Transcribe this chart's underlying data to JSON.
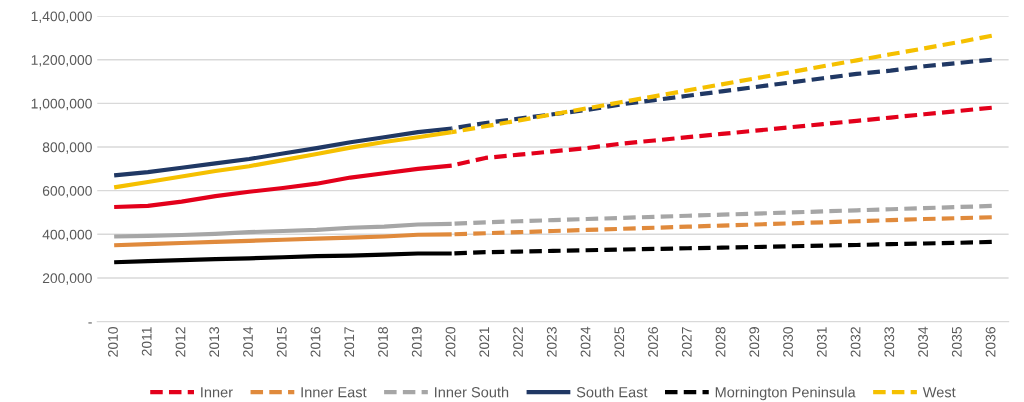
{
  "chart_data": {
    "type": "line",
    "categories": [
      "2010",
      "2011",
      "2012",
      "2013",
      "2014",
      "2015",
      "2016",
      "2017",
      "2018",
      "2019",
      "2020",
      "2021",
      "2022",
      "2023",
      "2024",
      "2025",
      "2026",
      "2027",
      "2028",
      "2029",
      "2030",
      "2031",
      "2032",
      "2033",
      "2034",
      "2035",
      "2036"
    ],
    "ylim": [
      0,
      1400000
    ],
    "yticks": [
      {
        "value": 0,
        "label": "-"
      },
      {
        "value": 200000,
        "label": "200,000"
      },
      {
        "value": 400000,
        "label": "400,000"
      },
      {
        "value": 600000,
        "label": "600,000"
      },
      {
        "value": 800000,
        "label": "800,000"
      },
      {
        "value": 1000000,
        "label": "1,000,000"
      },
      {
        "value": 1200000,
        "label": "1,200,000"
      },
      {
        "value": 1400000,
        "label": "1,400,000"
      }
    ],
    "grid": "y",
    "legend": "bottom",
    "marker": "none",
    "series": [
      {
        "color": "#e3001b",
        "line_style": "solid",
        "values": [
          525000,
          530000,
          550000,
          575000,
          595000,
          612000,
          632000,
          660000,
          680000,
          700000,
          715000,
          null,
          null,
          null,
          null,
          null,
          null,
          null,
          null,
          null,
          null,
          null,
          null,
          null,
          null,
          null,
          null
        ]
      },
      {
        "name": "Inner",
        "color": "#e3001b",
        "line_style": "dashed",
        "values": [
          null,
          null,
          null,
          null,
          null,
          null,
          null,
          null,
          null,
          null,
          715000,
          750000,
          765000,
          780000,
          795000,
          815000,
          830000,
          845000,
          860000,
          875000,
          890000,
          905000,
          920000,
          935000,
          950000,
          965000,
          980000
        ]
      },
      {
        "color": "#e08a3c",
        "line_style": "solid",
        "values": [
          350000,
          355000,
          360000,
          365000,
          370000,
          375000,
          380000,
          385000,
          390000,
          398000,
          400000,
          null,
          null,
          null,
          null,
          null,
          null,
          null,
          null,
          null,
          null,
          null,
          null,
          null,
          null,
          null,
          null
        ]
      },
      {
        "name": "Inner East",
        "color": "#e08a3c",
        "line_style": "dashed",
        "values": [
          null,
          null,
          null,
          null,
          null,
          null,
          null,
          null,
          null,
          null,
          400000,
          405000,
          410000,
          415000,
          420000,
          425000,
          430000,
          435000,
          440000,
          445000,
          450000,
          455000,
          460000,
          465000,
          470000,
          474000,
          478000
        ]
      },
      {
        "color": "#a6a6a6",
        "line_style": "solid",
        "values": [
          390000,
          393000,
          397000,
          402000,
          410000,
          415000,
          420000,
          430000,
          435000,
          445000,
          448000,
          null,
          null,
          null,
          null,
          null,
          null,
          null,
          null,
          null,
          null,
          null,
          null,
          null,
          null,
          null,
          null
        ]
      },
      {
        "name": "Inner South",
        "color": "#a6a6a6",
        "line_style": "dashed",
        "values": [
          null,
          null,
          null,
          null,
          null,
          null,
          null,
          null,
          null,
          null,
          448000,
          455000,
          460000,
          465000,
          470000,
          475000,
          480000,
          485000,
          490000,
          495000,
          500000,
          505000,
          510000,
          515000,
          520000,
          525000,
          530000
        ]
      },
      {
        "name": "South East",
        "color": "#203864",
        "line_style": "solid",
        "values": [
          670000,
          685000,
          705000,
          725000,
          745000,
          770000,
          795000,
          822000,
          845000,
          868000,
          885000,
          null,
          null,
          null,
          null,
          null,
          null,
          null,
          null,
          null,
          null,
          null,
          null,
          null,
          null,
          null,
          null
        ]
      },
      {
        "color": "#203864",
        "line_style": "dashed",
        "values": [
          null,
          null,
          null,
          null,
          null,
          null,
          null,
          null,
          null,
          null,
          885000,
          910000,
          930000,
          950000,
          970000,
          995000,
          1015000,
          1035000,
          1055000,
          1075000,
          1095000,
          1115000,
          1135000,
          1150000,
          1170000,
          1185000,
          1200000
        ]
      },
      {
        "color": "#000000",
        "line_style": "solid",
        "values": [
          272000,
          277000,
          282000,
          286000,
          290000,
          295000,
          300000,
          302000,
          307000,
          312000,
          312000,
          null,
          null,
          null,
          null,
          null,
          null,
          null,
          null,
          null,
          null,
          null,
          null,
          null,
          null,
          null,
          null
        ]
      },
      {
        "name": "Mornington Peninsula",
        "color": "#000000",
        "line_style": "dashed",
        "values": [
          null,
          null,
          null,
          null,
          null,
          null,
          null,
          null,
          null,
          null,
          312000,
          318000,
          321000,
          324000,
          327000,
          330000,
          333000,
          336000,
          339000,
          342000,
          345000,
          348000,
          351000,
          355000,
          358000,
          361000,
          365000
        ]
      },
      {
        "color": "#f5c000",
        "line_style": "solid",
        "values": [
          615000,
          640000,
          665000,
          690000,
          712000,
          740000,
          768000,
          797000,
          823000,
          845000,
          868000,
          null,
          null,
          null,
          null,
          null,
          null,
          null,
          null,
          null,
          null,
          null,
          null,
          null,
          null,
          null,
          null
        ]
      },
      {
        "name": "West",
        "color": "#f5c000",
        "line_style": "dashed",
        "values": [
          null,
          null,
          null,
          null,
          null,
          null,
          null,
          null,
          null,
          null,
          868000,
          895000,
          922000,
          950000,
          977000,
          1005000,
          1032000,
          1060000,
          1087000,
          1115000,
          1142000,
          1170000,
          1197000,
          1225000,
          1252000,
          1280000,
          1310000
        ]
      }
    ]
  }
}
